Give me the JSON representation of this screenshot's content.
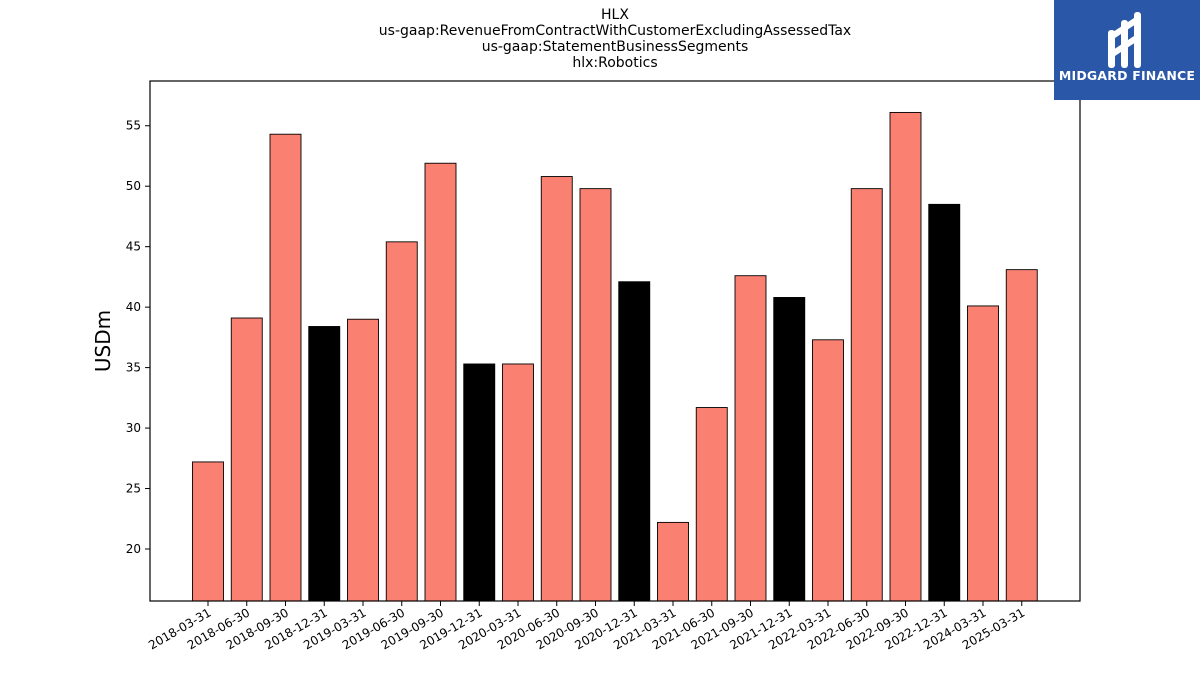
{
  "chart_data": {
    "type": "bar",
    "title_lines": [
      "HLX",
      "us-gaap:RevenueFromContractWithCustomerExcludingAssessedTax",
      "us-gaap:StatementBusinessSegments",
      "hlx:Robotics"
    ],
    "xlabel": "",
    "ylabel": "USDm",
    "ylim": [
      15.7,
      58.7
    ],
    "yticks": [
      20,
      25,
      30,
      35,
      40,
      45,
      50,
      55
    ],
    "categories": [
      "2018-03-31",
      "2018-06-30",
      "2018-09-30",
      "2018-12-31",
      "2019-03-31",
      "2019-06-30",
      "2019-09-30",
      "2019-12-31",
      "2020-03-31",
      "2020-06-30",
      "2020-09-30",
      "2020-12-31",
      "2021-03-31",
      "2021-06-30",
      "2021-09-30",
      "2021-12-31",
      "2022-03-31",
      "2022-06-30",
      "2022-09-30",
      "2022-12-31",
      "2024-03-31",
      "2025-03-31"
    ],
    "values": [
      27.2,
      39.1,
      54.3,
      38.4,
      39.0,
      45.4,
      51.9,
      35.3,
      35.3,
      50.8,
      49.8,
      42.1,
      22.2,
      31.7,
      42.6,
      40.8,
      37.3,
      49.8,
      56.1,
      48.5,
      40.1,
      43.1
    ],
    "highlight": [
      false,
      false,
      false,
      true,
      false,
      false,
      false,
      true,
      false,
      false,
      false,
      true,
      false,
      false,
      false,
      true,
      false,
      false,
      false,
      true,
      false,
      false
    ],
    "colors": {
      "bar": "#fa8072",
      "highlight": "#000000",
      "edge": "#000000"
    },
    "grid": false
  },
  "logo": {
    "text": "MIDGARD FINANCE",
    "background": "#2b57a8"
  }
}
